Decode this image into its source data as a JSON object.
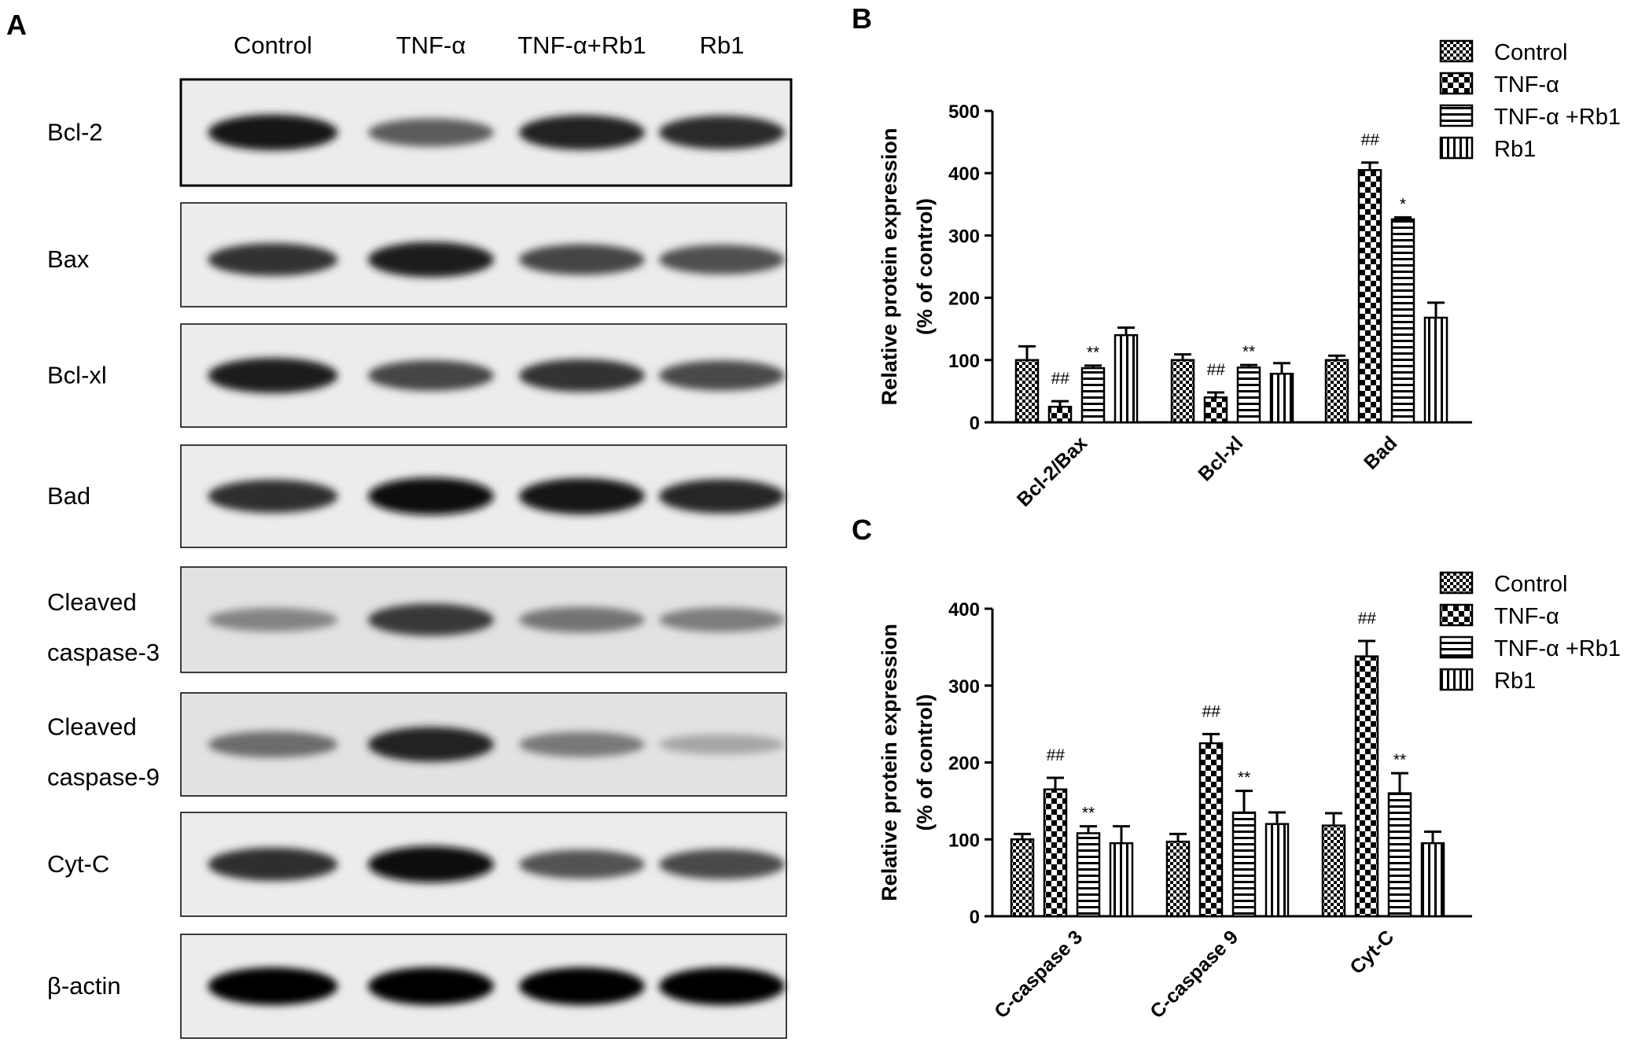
{
  "panel_a": {
    "letter": "A",
    "lanes": [
      "Control",
      "TNF-α",
      "TNF-α+Rb1",
      "Rb1"
    ],
    "blots": [
      {
        "lines": [
          "Bcl-2"
        ],
        "intensities": [
          0.92,
          0.62,
          0.88,
          0.84
        ]
      },
      {
        "lines": [
          "Bax"
        ],
        "intensities": [
          0.8,
          0.9,
          0.72,
          0.68
        ]
      },
      {
        "lines": [
          "Bcl-xl"
        ],
        "intensities": [
          0.9,
          0.72,
          0.8,
          0.7
        ]
      },
      {
        "lines": [
          "Bad"
        ],
        "intensities": [
          0.82,
          0.98,
          0.94,
          0.86
        ]
      },
      {
        "lines": [
          "Cleaved",
          "caspase-3"
        ],
        "intensities": [
          0.45,
          0.78,
          0.52,
          0.48
        ]
      },
      {
        "lines": [
          "Cleaved",
          "caspase-9"
        ],
        "intensities": [
          0.55,
          0.88,
          0.5,
          0.3
        ]
      },
      {
        "lines": [
          "Cyt-C"
        ],
        "intensities": [
          0.82,
          0.95,
          0.66,
          0.7
        ]
      },
      {
        "lines": [
          "β-actin"
        ],
        "intensities": [
          1.0,
          1.0,
          1.0,
          1.0
        ]
      }
    ]
  },
  "chart_data": [
    {
      "panel": "B",
      "type": "bar",
      "ylabel": [
        "Relative protein expression",
        "(% of control)"
      ],
      "ylim": [
        0,
        500
      ],
      "yticks": [
        0,
        100,
        200,
        300,
        400,
        500
      ],
      "categories": [
        "Bcl-2/Bax",
        "Bcl-xl",
        "Bad"
      ],
      "series": [
        {
          "name": "Control",
          "pattern": "dense-check",
          "values": [
            100,
            100,
            100
          ],
          "errors": [
            22,
            9,
            7
          ],
          "annotations": [
            "",
            "",
            ""
          ]
        },
        {
          "name": "TNF-α",
          "pattern": "big-check",
          "values": [
            25,
            40,
            405
          ],
          "errors": [
            9,
            8,
            12
          ],
          "annotations": [
            "##",
            "##",
            "##"
          ]
        },
        {
          "name": "TNF-α +Rb1",
          "pattern": "horizontal",
          "values": [
            87,
            88,
            326
          ],
          "errors": [
            4,
            4,
            3
          ],
          "annotations": [
            "**",
            "**",
            "*"
          ]
        },
        {
          "name": "Rb1",
          "pattern": "vertical",
          "values": [
            140,
            78,
            168
          ],
          "errors": [
            12,
            17,
            24
          ],
          "annotations": [
            "",
            "",
            ""
          ]
        }
      ],
      "legend_position": "top-right"
    },
    {
      "panel": "C",
      "type": "bar",
      "ylabel": [
        "Relative protein expression",
        "(% of control)"
      ],
      "ylim": [
        0,
        400
      ],
      "yticks": [
        0,
        100,
        200,
        300,
        400
      ],
      "categories": [
        "C-caspase 3",
        "C-caspase 9",
        "Cyt-C"
      ],
      "series": [
        {
          "name": "Control",
          "pattern": "dense-check",
          "values": [
            100,
            97,
            118
          ],
          "errors": [
            7,
            10,
            16
          ],
          "annotations": [
            "",
            "",
            ""
          ]
        },
        {
          "name": "TNF-α",
          "pattern": "big-check",
          "values": [
            165,
            225,
            338
          ],
          "errors": [
            15,
            12,
            20
          ],
          "annotations": [
            "##",
            "##",
            "##"
          ]
        },
        {
          "name": "TNF-α +Rb1",
          "pattern": "horizontal",
          "values": [
            108,
            135,
            160
          ],
          "errors": [
            9,
            28,
            26
          ],
          "annotations": [
            "**",
            "**",
            "**"
          ]
        },
        {
          "name": "Rb1",
          "pattern": "vertical",
          "values": [
            95,
            120,
            95
          ],
          "errors": [
            22,
            15,
            15
          ],
          "annotations": [
            "",
            "",
            ""
          ]
        }
      ],
      "legend_position": "top-right"
    }
  ]
}
